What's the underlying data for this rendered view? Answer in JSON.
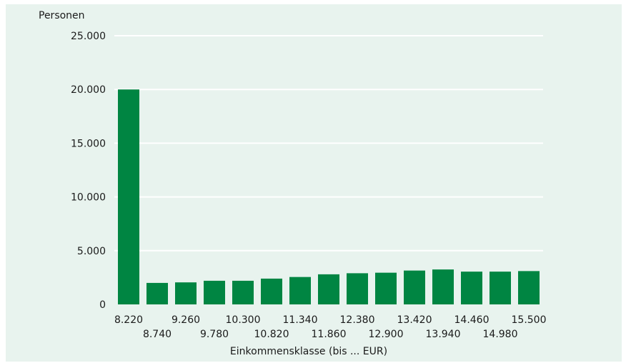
{
  "chart_data": {
    "type": "bar",
    "ylabel": "Personen",
    "xlabel": "Einkommensklasse (bis ... EUR)",
    "categories": [
      "8.220",
      "8.740",
      "9.260",
      "9.780",
      "10.300",
      "10.820",
      "11.340",
      "11.860",
      "12.380",
      "12.900",
      "13.420",
      "13.940",
      "14.460",
      "14.980",
      "15.500"
    ],
    "values": [
      20000,
      2000,
      2050,
      2200,
      2200,
      2400,
      2550,
      2800,
      2900,
      2950,
      3150,
      3250,
      3050,
      3050,
      3100
    ],
    "ylim": [
      0,
      25000
    ],
    "yticks": [
      "0",
      "5.000",
      "10.000",
      "15.000",
      "20.000",
      "25.000"
    ],
    "ytick_values": [
      0,
      5000,
      10000,
      15000,
      20000,
      25000
    ],
    "grid": true,
    "legend": "none",
    "bar_color": "#008542",
    "background_color": "#e8f3ee"
  }
}
